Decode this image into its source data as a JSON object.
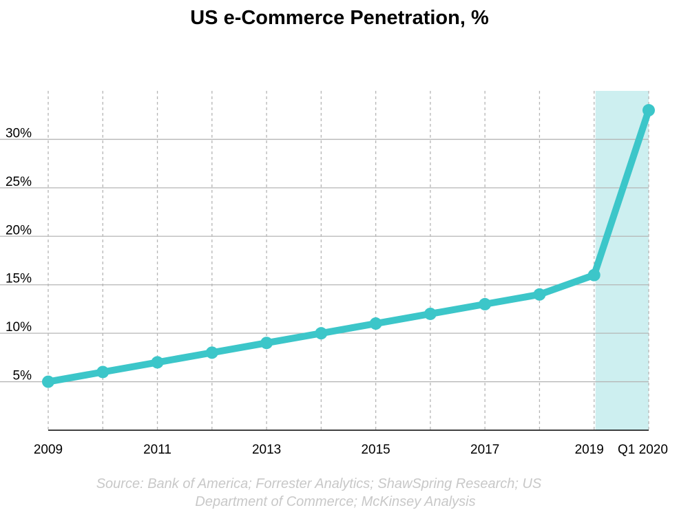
{
  "chart_data": {
    "type": "line",
    "title": "US e-Commerce Penetration, %",
    "x": [
      "2009",
      "2010",
      "2011",
      "2012",
      "2013",
      "2014",
      "2015",
      "2016",
      "2017",
      "2018",
      "2019",
      "Q1 2020"
    ],
    "x_tick_labels": [
      "2009",
      "",
      "2011",
      "",
      "2013",
      "",
      "2015",
      "",
      "2017",
      "",
      "2019",
      "Q1 2020"
    ],
    "series": [
      {
        "values": [
          5,
          6,
          7,
          8,
          9,
          10,
          11,
          12,
          13,
          14,
          16,
          33
        ]
      }
    ],
    "y_tick_values": [
      5,
      10,
      15,
      20,
      25,
      30
    ],
    "y_tick_labels": [
      "5%",
      "10%",
      "15%",
      "20%",
      "25%",
      "30%"
    ],
    "ylim": [
      0,
      35
    ],
    "xlabel": "",
    "ylabel": "",
    "highlight_range": [
      "2019",
      "Q1 2020"
    ],
    "grid": {
      "horizontal": true,
      "vertical_dashed": true
    },
    "colors": {
      "line": "#3cc6c9",
      "highlight": "#cdeff0",
      "grid": "#b5b5b5"
    }
  },
  "source_lines": [
    "Source: Bank of America; Forrester Analytics; ShawSpring Research; US",
    "Department of Commerce; McKinsey Analysis"
  ]
}
